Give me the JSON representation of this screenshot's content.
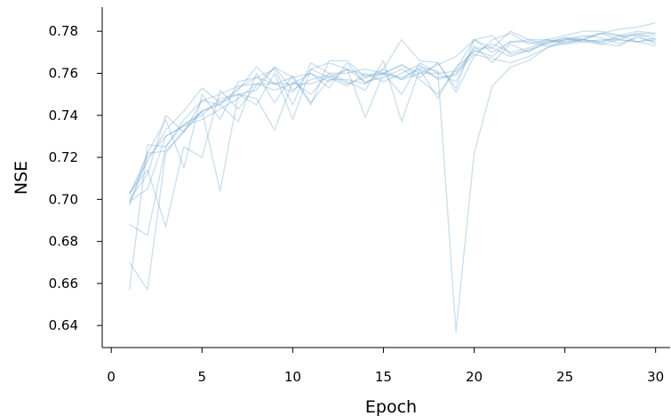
{
  "chart_data": {
    "type": "line",
    "title": "",
    "xlabel": "Epoch",
    "ylabel": "NSE",
    "xlim": [
      -0.5,
      30.8
    ],
    "ylim": [
      0.6295,
      0.7915
    ],
    "xticks": [
      0,
      5,
      10,
      15,
      20,
      25,
      30
    ],
    "yticks": [
      0.64,
      0.66,
      0.68,
      0.7,
      0.72,
      0.74,
      0.76,
      0.78
    ],
    "grid": false,
    "legend": "none",
    "line_color": "#6fa7cf",
    "line_opacity": 0.35,
    "x": [
      1,
      2,
      3,
      4,
      5,
      6,
      7,
      8,
      9,
      10,
      11,
      12,
      13,
      14,
      15,
      16,
      17,
      18,
      19,
      20,
      21,
      22,
      23,
      24,
      25,
      26,
      27,
      28,
      29,
      30
    ],
    "series": [
      {
        "values": [
          0.657,
          0.726,
          0.725,
          0.738,
          0.747,
          0.75,
          0.754,
          0.755,
          0.755,
          0.758,
          0.76,
          0.753,
          0.765,
          0.755,
          0.76,
          0.757,
          0.763,
          0.761,
          0.637,
          0.722,
          0.754,
          0.763,
          0.766,
          0.772,
          0.776,
          0.777,
          0.779,
          0.781,
          0.782,
          0.784
        ]
      },
      {
        "values": [
          0.67,
          0.657,
          0.722,
          0.733,
          0.742,
          0.745,
          0.752,
          0.763,
          0.755,
          0.751,
          0.762,
          0.758,
          0.754,
          0.76,
          0.756,
          0.76,
          0.764,
          0.757,
          0.76,
          0.769,
          0.767,
          0.765,
          0.768,
          0.772,
          0.775,
          0.776,
          0.775,
          0.778,
          0.78,
          0.779
        ]
      },
      {
        "values": [
          0.688,
          0.683,
          0.725,
          0.736,
          0.74,
          0.748,
          0.75,
          0.745,
          0.76,
          0.738,
          0.762,
          0.765,
          0.762,
          0.739,
          0.76,
          0.75,
          0.765,
          0.76,
          0.761,
          0.771,
          0.768,
          0.775,
          0.776,
          0.774,
          0.776,
          0.778,
          0.777,
          0.774,
          0.777,
          0.775
        ]
      },
      {
        "values": [
          0.697,
          0.72,
          0.73,
          0.735,
          0.738,
          0.743,
          0.748,
          0.755,
          0.752,
          0.755,
          0.76,
          0.756,
          0.762,
          0.756,
          0.758,
          0.762,
          0.757,
          0.75,
          0.762,
          0.776,
          0.772,
          0.78,
          0.776,
          0.776,
          0.778,
          0.78,
          0.78,
          0.778,
          0.778,
          0.778
        ]
      },
      {
        "values": [
          0.699,
          0.705,
          0.73,
          0.735,
          0.742,
          0.746,
          0.753,
          0.758,
          0.755,
          0.755,
          0.755,
          0.758,
          0.762,
          0.759,
          0.76,
          0.758,
          0.762,
          0.758,
          0.759,
          0.772,
          0.772,
          0.768,
          0.771,
          0.774,
          0.777,
          0.776,
          0.775,
          0.777,
          0.779,
          0.776
        ]
      },
      {
        "values": [
          0.7,
          0.712,
          0.74,
          0.732,
          0.742,
          0.704,
          0.75,
          0.748,
          0.733,
          0.756,
          0.75,
          0.76,
          0.756,
          0.752,
          0.766,
          0.737,
          0.762,
          0.748,
          0.763,
          0.77,
          0.774,
          0.77,
          0.772,
          0.776,
          0.775,
          0.776,
          0.774,
          0.773,
          0.778,
          0.774
        ]
      },
      {
        "values": [
          0.702,
          0.722,
          0.723,
          0.732,
          0.747,
          0.745,
          0.737,
          0.76,
          0.746,
          0.759,
          0.746,
          0.757,
          0.757,
          0.755,
          0.762,
          0.757,
          0.76,
          0.764,
          0.768,
          0.776,
          0.778,
          0.769,
          0.771,
          0.775,
          0.776,
          0.776,
          0.779,
          0.776,
          0.775,
          0.773
        ]
      },
      {
        "values": [
          0.703,
          0.714,
          0.687,
          0.725,
          0.72,
          0.752,
          0.743,
          0.754,
          0.763,
          0.752,
          0.757,
          0.759,
          0.755,
          0.758,
          0.76,
          0.764,
          0.758,
          0.765,
          0.753,
          0.776,
          0.77,
          0.775,
          0.775,
          0.773,
          0.774,
          0.776,
          0.779,
          0.778,
          0.775,
          0.776
        ]
      },
      {
        "values": [
          0.698,
          0.722,
          0.738,
          0.715,
          0.75,
          0.738,
          0.756,
          0.758,
          0.762,
          0.745,
          0.765,
          0.76,
          0.76,
          0.762,
          0.76,
          0.764,
          0.76,
          0.76,
          0.756,
          0.773,
          0.765,
          0.774,
          0.77,
          0.775,
          0.777,
          0.775,
          0.774,
          0.776,
          0.779,
          0.779
        ]
      },
      {
        "values": [
          0.703,
          0.718,
          0.733,
          0.742,
          0.753,
          0.746,
          0.75,
          0.752,
          0.763,
          0.758,
          0.745,
          0.766,
          0.766,
          0.758,
          0.762,
          0.776,
          0.766,
          0.765,
          0.751,
          0.768,
          0.776,
          0.779,
          0.774,
          0.776,
          0.774,
          0.775,
          0.776,
          0.776,
          0.775,
          0.777
        ]
      }
    ]
  }
}
